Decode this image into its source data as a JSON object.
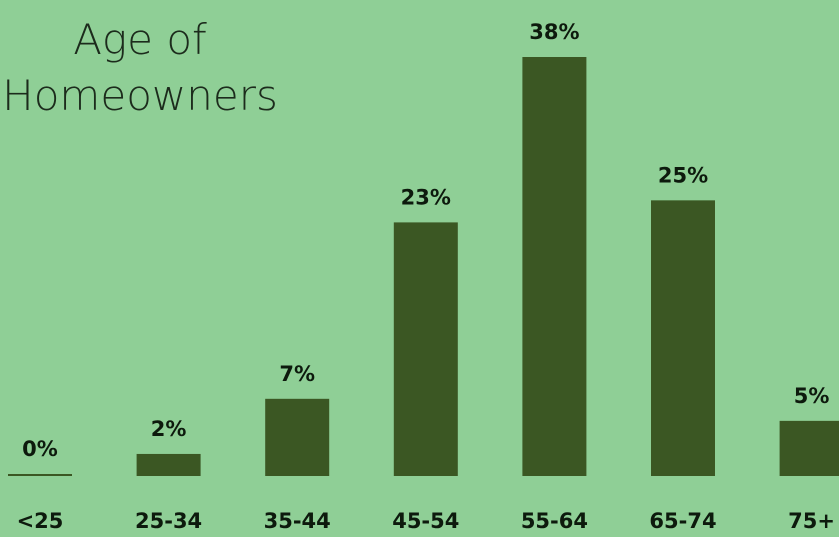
{
  "chart_data": {
    "type": "bar",
    "title_lines": [
      "Age of",
      "Homeowners"
    ],
    "categories": [
      "<25",
      "25-34",
      "35-44",
      "45-54",
      "55-64",
      "65-74",
      "75+"
    ],
    "values": [
      0,
      2,
      7,
      23,
      38,
      25,
      5
    ],
    "value_labels": [
      "0%",
      "2%",
      "7%",
      "23%",
      "38%",
      "25%",
      "5%"
    ],
    "xlabel": "",
    "ylabel": "",
    "ylim": [
      0,
      38
    ],
    "grid": false,
    "legend": "none",
    "colors": {
      "bar": "#3b5723",
      "background": "#8fcf96",
      "text": "#0d1a0d"
    }
  }
}
